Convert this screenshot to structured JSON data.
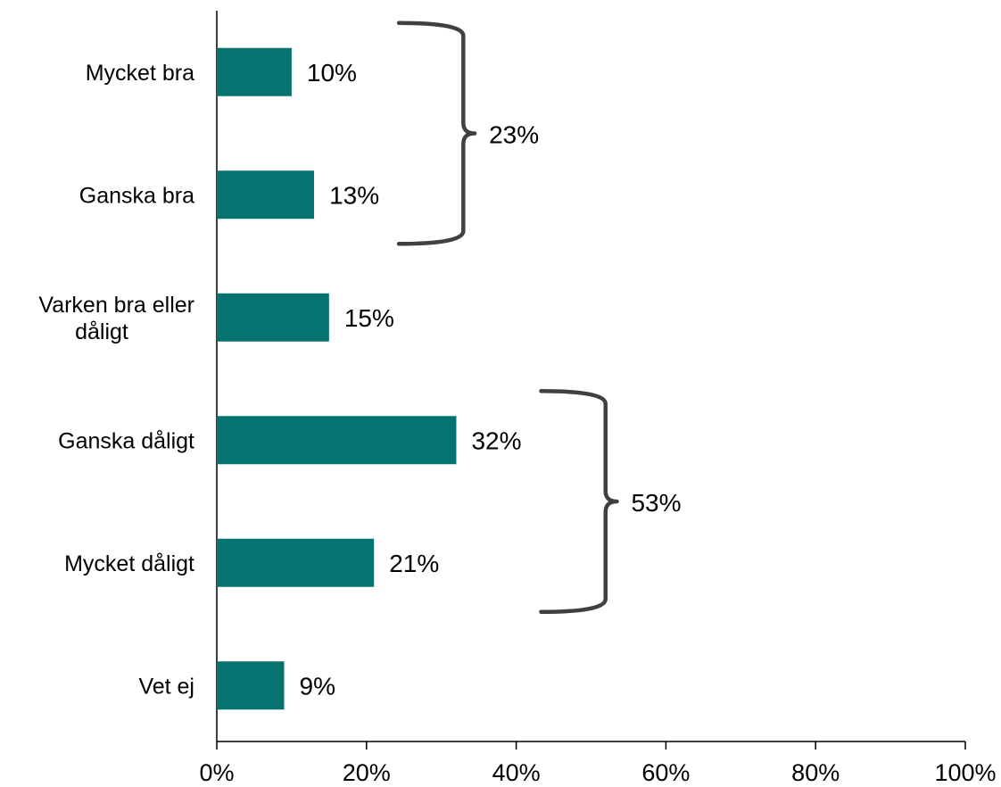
{
  "chart_data": {
    "type": "bar",
    "orientation": "horizontal",
    "categories": [
      [
        "Mycket bra"
      ],
      [
        "Ganska bra"
      ],
      [
        "Varken bra eller",
        "dåligt"
      ],
      [
        "Ganska dåligt"
      ],
      [
        "Mycket dåligt"
      ],
      [
        "Vet ej"
      ]
    ],
    "values": [
      10,
      13,
      15,
      32,
      21,
      9
    ],
    "value_labels": [
      "10%",
      "13%",
      "15%",
      "32%",
      "21%",
      "9%"
    ],
    "xlim": [
      0,
      100
    ],
    "x_ticks": [
      0,
      20,
      40,
      60,
      80,
      100
    ],
    "x_tick_labels": [
      "0%",
      "20%",
      "40%",
      "60%",
      "80%",
      "100%"
    ],
    "bar_color": "#077370",
    "brace_color": "#404040",
    "grid": false,
    "groups": [
      {
        "label": "23%",
        "from_category": 0,
        "to_category": 1
      },
      {
        "label": "53%",
        "from_category": 3,
        "to_category": 4
      }
    ]
  }
}
